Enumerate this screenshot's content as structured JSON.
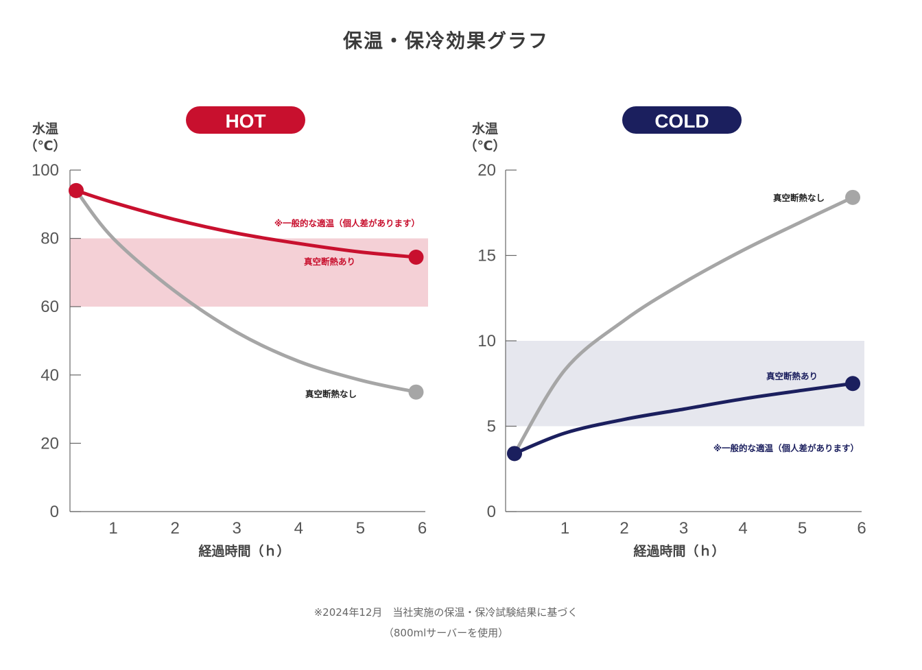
{
  "title": "保温・保冷効果グラフ",
  "footnote": {
    "line1": "※2024年12月　当社実施の保温・保冷試験結果に基づく",
    "line2": "（800mlサーバーを使用）"
  },
  "colors": {
    "hot_accent": "#c8102e",
    "cold_accent": "#1b1f5e",
    "gray_series": "#a6a6a6",
    "hot_band": "#f4d0d6",
    "cold_band": "#e6e7ee"
  },
  "chart_data": [
    {
      "type": "line",
      "badge": "HOT",
      "ylabel_line1": "水温",
      "ylabel_line2": "（℃）",
      "xlabel": "経過時間（ｈ）",
      "xlim": [
        0.3,
        6.05
      ],
      "ylim": [
        0,
        100
      ],
      "xticks": [
        1,
        2,
        3,
        4,
        5,
        6
      ],
      "yticks": [
        0,
        20,
        40,
        60,
        80,
        100
      ],
      "band": {
        "y_from": 60,
        "y_to": 80,
        "label": "※一般的な適温（個人差があります）"
      },
      "series": [
        {
          "name": "真空断熱あり",
          "color": "#c8102e",
          "x": [
            0.4,
            1,
            2,
            3,
            4,
            5,
            5.9
          ],
          "y": [
            94,
            90.5,
            85.5,
            81.5,
            78.5,
            76,
            74.5
          ]
        },
        {
          "name": "真空断熱なし",
          "color": "#a6a6a6",
          "x": [
            0.4,
            1,
            2,
            3,
            4,
            5,
            5.9
          ],
          "y": [
            94,
            80,
            64.5,
            52.5,
            44,
            38.5,
            35
          ]
        }
      ]
    },
    {
      "type": "line",
      "badge": "COLD",
      "ylabel_line1": "水温",
      "ylabel_line2": "（℃）",
      "xlabel": "経過時間（ｈ）",
      "xlim": [
        0.0,
        6.0
      ],
      "ylim": [
        0,
        20
      ],
      "xticks": [
        1,
        2,
        3,
        4,
        5,
        6
      ],
      "yticks": [
        0,
        5,
        10,
        15,
        20
      ],
      "band": {
        "y_from": 5,
        "y_to": 10,
        "label": "※一般的な適温（個人差があります）"
      },
      "series": [
        {
          "name": "真空断熱あり",
          "color": "#1b1f5e",
          "x": [
            0.15,
            1,
            2,
            3,
            4,
            5,
            5.85
          ],
          "y": [
            3.4,
            4.6,
            5.4,
            6.0,
            6.6,
            7.1,
            7.5
          ]
        },
        {
          "name": "真空断熱なし",
          "color": "#a6a6a6",
          "x": [
            0.15,
            1,
            2,
            3,
            4,
            5,
            5.85
          ],
          "y": [
            3.4,
            8.3,
            11.2,
            13.4,
            15.3,
            17.0,
            18.4
          ]
        }
      ]
    }
  ]
}
